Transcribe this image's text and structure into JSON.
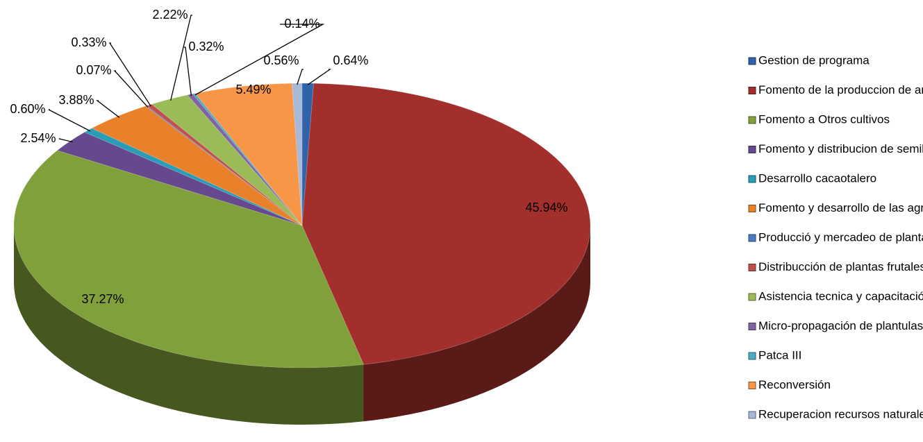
{
  "chart_data": {
    "type": "pie",
    "categories": [
      "Gestion de programa",
      "Fomento de la produccion de arroz",
      "Fomento a Otros cultivos",
      "Fomento y distribucion de semillas",
      "Desarrollo cacaotalero",
      "Fomento y desarrollo de las agroempresa",
      "Producció y mercadeo de plantas frutales",
      "Distribucción de plantas frutales.",
      "Asistencia tecnica y capacitación.",
      "Micro-propagación de plantulas in-vitro.",
      "Patca III",
      "Reconversión",
      "Recuperacion recursos naturales"
    ],
    "values": [
      0.64,
      45.94,
      37.27,
      2.54,
      0.6,
      3.88,
      0.07,
      0.33,
      2.22,
      0.32,
      0.14,
      5.49,
      0.56
    ],
    "value_labels": [
      "0.64%",
      "45.94%",
      "37.27%",
      "2.54%",
      "0.60%",
      "3.88%",
      "0.07%",
      "0.33%",
      "2.22%",
      "0.32%",
      "0.14%",
      "5.49%",
      "0.56%"
    ],
    "colors": [
      "#2f62a8",
      "#a32f2c",
      "#7fa03a",
      "#66488c",
      "#2b9cb6",
      "#e8812a",
      "#4a7cc4",
      "#c0504d",
      "#9bbb59",
      "#8064a2",
      "#4bacc6",
      "#f79646",
      "#a9b8d6"
    ]
  }
}
